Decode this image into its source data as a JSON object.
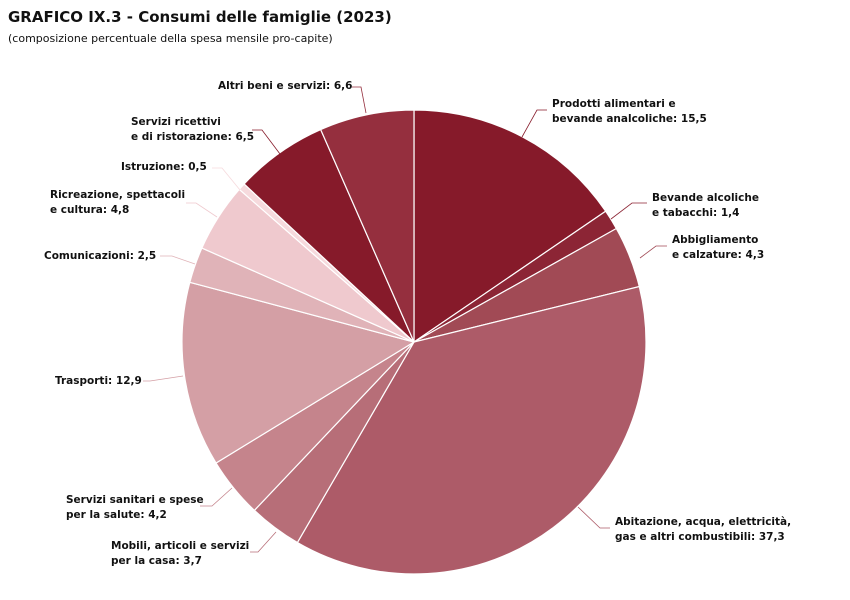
{
  "chart_data": {
    "type": "pie",
    "title": "GRAFICO IX.3 - Consumi delle famiglie (2023)",
    "subtitle": "(composizione percentuale della spesa mensile pro-capite)",
    "slices": [
      {
        "label": "Prodotti alimentari e\nbevande analcoliche",
        "value": 15.5,
        "value_text": "15,5",
        "color": "#861a2a"
      },
      {
        "label": "Bevande alcoliche\ne tabacchi",
        "value": 1.4,
        "value_text": "1,4",
        "color": "#8c2535"
      },
      {
        "label": "Abbigliamento\ne calzature",
        "value": 4.3,
        "value_text": "4,3",
        "color": "#a14a55"
      },
      {
        "label": "Abitazione, acqua, elettricità,\ngas e altri combustibili",
        "value": 37.3,
        "value_text": "37,3",
        "color": "#ad5b68"
      },
      {
        "label": "Mobili, articoli e servizi\nper la casa",
        "value": 3.7,
        "value_text": "3,7",
        "color": "#b76e78"
      },
      {
        "label": "Servizi sanitari e spese\nper la salute",
        "value": 4.2,
        "value_text": "4,2",
        "color": "#c5848c"
      },
      {
        "label": "Trasporti",
        "value": 12.9,
        "value_text": "12,9",
        "color": "#d49fa5"
      },
      {
        "label": "Comunicazioni",
        "value": 2.5,
        "value_text": "2,5",
        "color": "#e0b3b8"
      },
      {
        "label": "Ricreazione, spettacoli\ne cultura",
        "value": 4.8,
        "value_text": "4,8",
        "color": "#efc9ce"
      },
      {
        "label": "Istruzione",
        "value": 0.5,
        "value_text": "0,5",
        "color": "#f6dadd"
      },
      {
        "label": "Servizi ricettivi\ne di ristorazione",
        "value": 6.5,
        "value_text": "6,5",
        "color": "#861a2a"
      },
      {
        "label": "Altri beni e servizi",
        "value": 6.6,
        "value_text": "6,6",
        "color": "#952f3e"
      }
    ]
  }
}
